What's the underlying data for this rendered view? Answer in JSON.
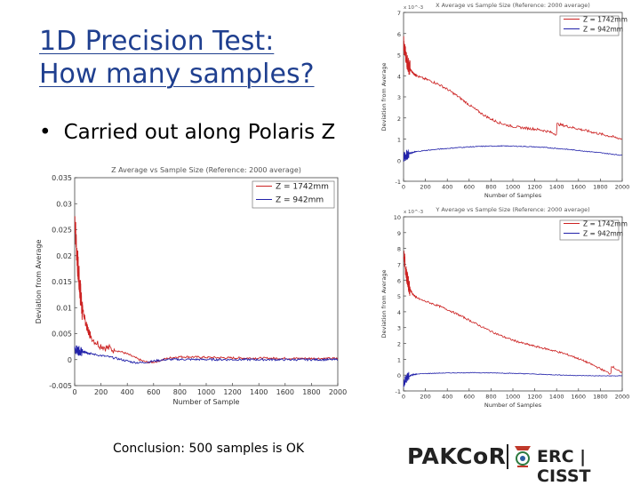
{
  "slide": {
    "title_line1": "1D Precision Test:",
    "title_line2": "How many samples?",
    "bullet_symbol": "•",
    "bullet_text": "Carried out along Polaris Z",
    "conclusion": "Conclusion: 500 samples is OK"
  },
  "logo": {
    "pakcor": "PAKCoR",
    "erc_cisst": "ERC | CISST"
  },
  "chart_data": [
    {
      "id": "main",
      "type": "line",
      "title": "Z Average vs Sample Size (Reference: 2000 average)",
      "xlabel": "Number of Sample",
      "ylabel": "Deviation from Average",
      "xlim": [
        0,
        2000
      ],
      "ylim": [
        -0.005,
        0.035
      ],
      "xticks": [
        "0",
        "200",
        "400",
        "600",
        "800",
        "1000",
        "1200",
        "1400",
        "1600",
        "1800",
        "2000"
      ],
      "yticks": [
        "-0.005",
        "0",
        "0.005",
        "0.01",
        "0.015",
        "0.02",
        "0.025",
        "0.03",
        "0.035"
      ],
      "legend": {
        "position": "top-right",
        "entries": [
          "Z = 1742mm",
          "Z = 942mm"
        ]
      },
      "series": [
        {
          "name": "Z = 1742mm",
          "color": "#cc2222",
          "kind": "main_red"
        },
        {
          "name": "Z = 942mm",
          "color": "#2222aa",
          "kind": "main_blue"
        }
      ]
    },
    {
      "id": "upper",
      "type": "line",
      "title": "X Average vs Sample Size (Reference: 2000 average)",
      "exponent": "x 10^-3",
      "xlabel": "Number of Samples",
      "ylabel": "Deviation from Average",
      "xlim": [
        0,
        2000
      ],
      "ylim": [
        -1,
        7
      ],
      "xticks": [
        "0",
        "200",
        "400",
        "600",
        "800",
        "1000",
        "1200",
        "1400",
        "1600",
        "1800",
        "2000"
      ],
      "yticks": [
        "-1",
        "0",
        "1",
        "2",
        "3",
        "4",
        "5",
        "6",
        "7"
      ],
      "legend": {
        "position": "top-right",
        "entries": [
          "Z = 1742mm",
          "Z = 942mm"
        ]
      },
      "series": [
        {
          "name": "Z = 1742mm",
          "color": "#cc2222",
          "kind": "upper_red"
        },
        {
          "name": "Z = 942mm",
          "color": "#2222aa",
          "kind": "upper_blue"
        }
      ]
    },
    {
      "id": "lower",
      "type": "line",
      "title": "Y Average vs Sample Size (Reference: 2000 average)",
      "exponent": "x 10^-3",
      "xlabel": "Number of Samples",
      "ylabel": "Deviation from Average",
      "xlim": [
        0,
        2000
      ],
      "ylim": [
        -1,
        10
      ],
      "xticks": [
        "0",
        "200",
        "400",
        "600",
        "800",
        "1000",
        "1200",
        "1400",
        "1600",
        "1800",
        "2000"
      ],
      "yticks": [
        "-1",
        "0",
        "1",
        "2",
        "3",
        "4",
        "5",
        "6",
        "7",
        "8",
        "9",
        "10"
      ],
      "legend": {
        "position": "top-right",
        "entries": [
          "Z = 1742mm",
          "Z = 942mm"
        ]
      },
      "series": [
        {
          "name": "Z = 1742mm",
          "color": "#cc2222",
          "kind": "lower_red"
        },
        {
          "name": "Z = 942mm",
          "color": "#2222aa",
          "kind": "lower_blue"
        }
      ]
    }
  ]
}
